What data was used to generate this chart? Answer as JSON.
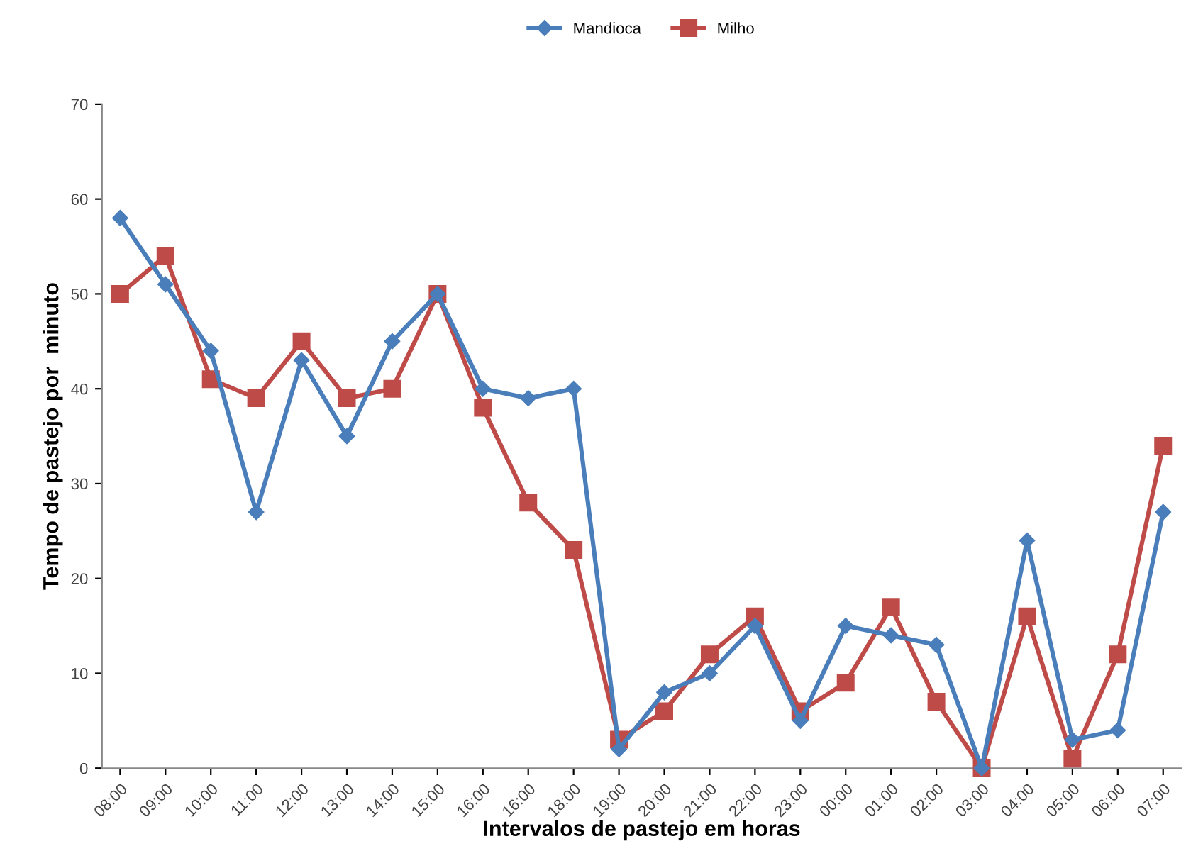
{
  "chart_data": {
    "type": "line",
    "xlabel": "Intervalos de pastejo em horas",
    "ylabel": "Tempo de pastejo por  minuto",
    "categories": [
      "08:00",
      "09:00",
      "10:00",
      "11:00",
      "12:00",
      "13:00",
      "14:00",
      "15:00",
      "16:00",
      "16:00",
      "18:00",
      "19:00",
      "20:00",
      "21:00",
      "22:00",
      "23:00",
      "00:00",
      "01:00",
      "02:00",
      "03:00",
      "04:00",
      "05:00",
      "06:00",
      "07:00"
    ],
    "series": [
      {
        "name": "Mandioca",
        "color": "#4a7ebb",
        "marker": "diamond",
        "values": [
          58,
          51,
          44,
          27,
          43,
          35,
          45,
          50,
          40,
          39,
          40,
          2,
          8,
          10,
          15,
          5,
          15,
          14,
          13,
          0,
          24,
          3,
          4,
          27
        ]
      },
      {
        "name": "Milho",
        "color": "#be4b48",
        "marker": "square",
        "values": [
          50,
          54,
          41,
          39,
          45,
          39,
          40,
          50,
          38,
          28,
          23,
          3,
          6,
          12,
          16,
          6,
          9,
          17,
          7,
          0,
          16,
          1,
          12,
          34
        ]
      }
    ],
    "ylim": [
      0,
      70
    ],
    "yticks": [
      0,
      10,
      20,
      30,
      40,
      50,
      60,
      70
    ],
    "grid": false,
    "legend": "top",
    "line_style": "solid"
  }
}
